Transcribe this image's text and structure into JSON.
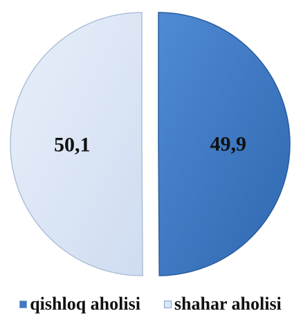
{
  "chart_data": {
    "type": "pie",
    "exploded": true,
    "categories": [
      "qishloq aholisi",
      "shahar aholisi"
    ],
    "values": [
      49.9,
      50.1
    ],
    "value_labels": [
      "49,9",
      "50,1"
    ],
    "colors": [
      "#3f7ac4",
      "#dbe6f6"
    ],
    "title": "",
    "legend_placement": "bottom"
  },
  "legend": {
    "items": [
      {
        "label": "qishloq aholisi",
        "color": "#3f7ac4"
      },
      {
        "label": "shahar aholisi",
        "color": "#dbe6f6"
      }
    ]
  }
}
